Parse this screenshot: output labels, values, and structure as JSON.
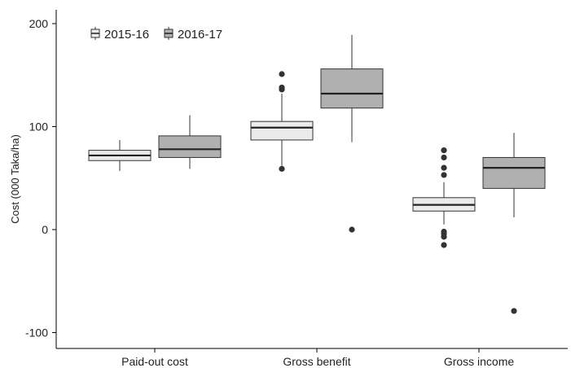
{
  "chart_data": {
    "type": "boxplot",
    "ylabel": "Cost (000 Taka/ha)",
    "xlabel": "",
    "ylim": [
      -115,
      215
    ],
    "yticks": [
      -100,
      0,
      100,
      200
    ],
    "categories": [
      "Paid-out cost",
      "Gross benefit",
      "Gross income"
    ],
    "legend_position": "top-left",
    "grid": false,
    "series": [
      {
        "name": "2015-16",
        "color": "#ebebeb",
        "boxes": [
          {
            "category": "Paid-out cost",
            "whisker_low": 57,
            "q1": 67,
            "median": 72,
            "q3": 77,
            "whisker_high": 87,
            "outliers": []
          },
          {
            "category": "Gross benefit",
            "whisker_low": 62,
            "q1": 87,
            "median": 99,
            "q3": 105,
            "whisker_high": 132,
            "outliers": [
              59,
              136,
              138,
              151
            ]
          },
          {
            "category": "Gross income",
            "whisker_low": 5,
            "q1": 18,
            "median": 24,
            "q3": 31,
            "whisker_high": 46,
            "outliers": [
              -15,
              -7,
              -4,
              -2,
              53,
              60,
              70,
              77
            ]
          }
        ]
      },
      {
        "name": "2016-17",
        "color": "#b0b0b0",
        "boxes": [
          {
            "category": "Paid-out cost",
            "whisker_low": 59,
            "q1": 70,
            "median": 78,
            "q3": 91,
            "whisker_high": 111,
            "outliers": []
          },
          {
            "category": "Gross benefit",
            "whisker_low": 85,
            "q1": 118,
            "median": 132,
            "q3": 156,
            "whisker_high": 189,
            "outliers": [
              0
            ]
          },
          {
            "category": "Gross income",
            "whisker_low": 12,
            "q1": 40,
            "median": 60,
            "q3": 70,
            "whisker_high": 94,
            "outliers": [
              -79
            ]
          }
        ]
      }
    ]
  }
}
